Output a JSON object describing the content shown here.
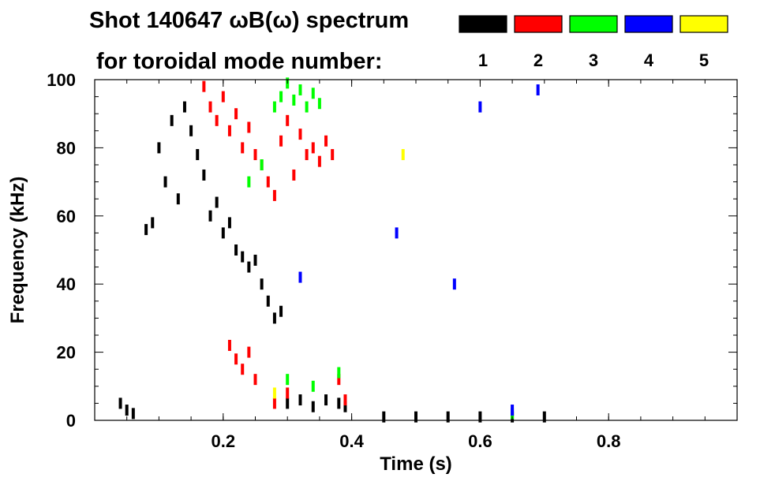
{
  "chart_data": {
    "type": "scatter",
    "title_line1": "Shot 140647 ωB(ω) spectrum",
    "title_line2": "for toroidal mode number:",
    "xlabel": "Time (s)",
    "ylabel": "Frequency (kHz)",
    "xlim": [
      0.0,
      1.0
    ],
    "ylim": [
      0,
      100
    ],
    "x_ticks": [
      0.2,
      0.4,
      0.6,
      0.8
    ],
    "x_tick_labels": [
      "0.2",
      "0.4",
      "0.6",
      "0.8"
    ],
    "y_ticks": [
      0,
      20,
      40,
      60,
      80,
      100
    ],
    "y_tick_labels": [
      "0",
      "20",
      "40",
      "60",
      "80",
      "100"
    ],
    "grid": false,
    "legend_placement": "top-right",
    "series": [
      {
        "name": "1",
        "color": "#000000",
        "points": [
          [
            0.04,
            5
          ],
          [
            0.05,
            3
          ],
          [
            0.06,
            2
          ],
          [
            0.08,
            56
          ],
          [
            0.09,
            58
          ],
          [
            0.1,
            80
          ],
          [
            0.11,
            70
          ],
          [
            0.12,
            88
          ],
          [
            0.13,
            65
          ],
          [
            0.14,
            92
          ],
          [
            0.15,
            85
          ],
          [
            0.16,
            78
          ],
          [
            0.17,
            72
          ],
          [
            0.18,
            60
          ],
          [
            0.19,
            64
          ],
          [
            0.2,
            55
          ],
          [
            0.21,
            58
          ],
          [
            0.22,
            50
          ],
          [
            0.23,
            48
          ],
          [
            0.24,
            45
          ],
          [
            0.25,
            47
          ],
          [
            0.26,
            40
          ],
          [
            0.27,
            35
          ],
          [
            0.28,
            30
          ],
          [
            0.29,
            32
          ],
          [
            0.3,
            5
          ],
          [
            0.32,
            6
          ],
          [
            0.34,
            4
          ],
          [
            0.36,
            6
          ],
          [
            0.38,
            5
          ],
          [
            0.39,
            4
          ],
          [
            0.45,
            1
          ],
          [
            0.5,
            1
          ],
          [
            0.55,
            1
          ],
          [
            0.6,
            1
          ],
          [
            0.65,
            1
          ],
          [
            0.7,
            1
          ]
        ]
      },
      {
        "name": "2",
        "color": "#ff0000",
        "points": [
          [
            0.17,
            98
          ],
          [
            0.18,
            92
          ],
          [
            0.19,
            88
          ],
          [
            0.2,
            95
          ],
          [
            0.21,
            85
          ],
          [
            0.22,
            90
          ],
          [
            0.23,
            80
          ],
          [
            0.24,
            86
          ],
          [
            0.25,
            78
          ],
          [
            0.26,
            75
          ],
          [
            0.27,
            70
          ],
          [
            0.28,
            66
          ],
          [
            0.29,
            82
          ],
          [
            0.3,
            88
          ],
          [
            0.31,
            72
          ],
          [
            0.32,
            84
          ],
          [
            0.33,
            78
          ],
          [
            0.34,
            80
          ],
          [
            0.35,
            76
          ],
          [
            0.36,
            82
          ],
          [
            0.37,
            78
          ],
          [
            0.21,
            22
          ],
          [
            0.22,
            18
          ],
          [
            0.23,
            15
          ],
          [
            0.24,
            20
          ],
          [
            0.25,
            12
          ],
          [
            0.28,
            5
          ],
          [
            0.3,
            8
          ],
          [
            0.38,
            12
          ],
          [
            0.39,
            6
          ]
        ]
      },
      {
        "name": "3",
        "color": "#00ff00",
        "points": [
          [
            0.28,
            92
          ],
          [
            0.29,
            95
          ],
          [
            0.3,
            99
          ],
          [
            0.31,
            94
          ],
          [
            0.32,
            97
          ],
          [
            0.33,
            92
          ],
          [
            0.34,
            96
          ],
          [
            0.35,
            93
          ],
          [
            0.26,
            75
          ],
          [
            0.24,
            70
          ],
          [
            0.3,
            12
          ],
          [
            0.34,
            10
          ],
          [
            0.38,
            14
          ],
          [
            0.65,
            2
          ]
        ]
      },
      {
        "name": "4",
        "color": "#0000ff",
        "points": [
          [
            0.32,
            42
          ],
          [
            0.47,
            55
          ],
          [
            0.56,
            40
          ],
          [
            0.6,
            92
          ],
          [
            0.65,
            3
          ],
          [
            0.69,
            97
          ]
        ]
      },
      {
        "name": "5",
        "color": "#ffff00",
        "points": [
          [
            0.28,
            8
          ],
          [
            0.48,
            78
          ]
        ]
      }
    ]
  }
}
